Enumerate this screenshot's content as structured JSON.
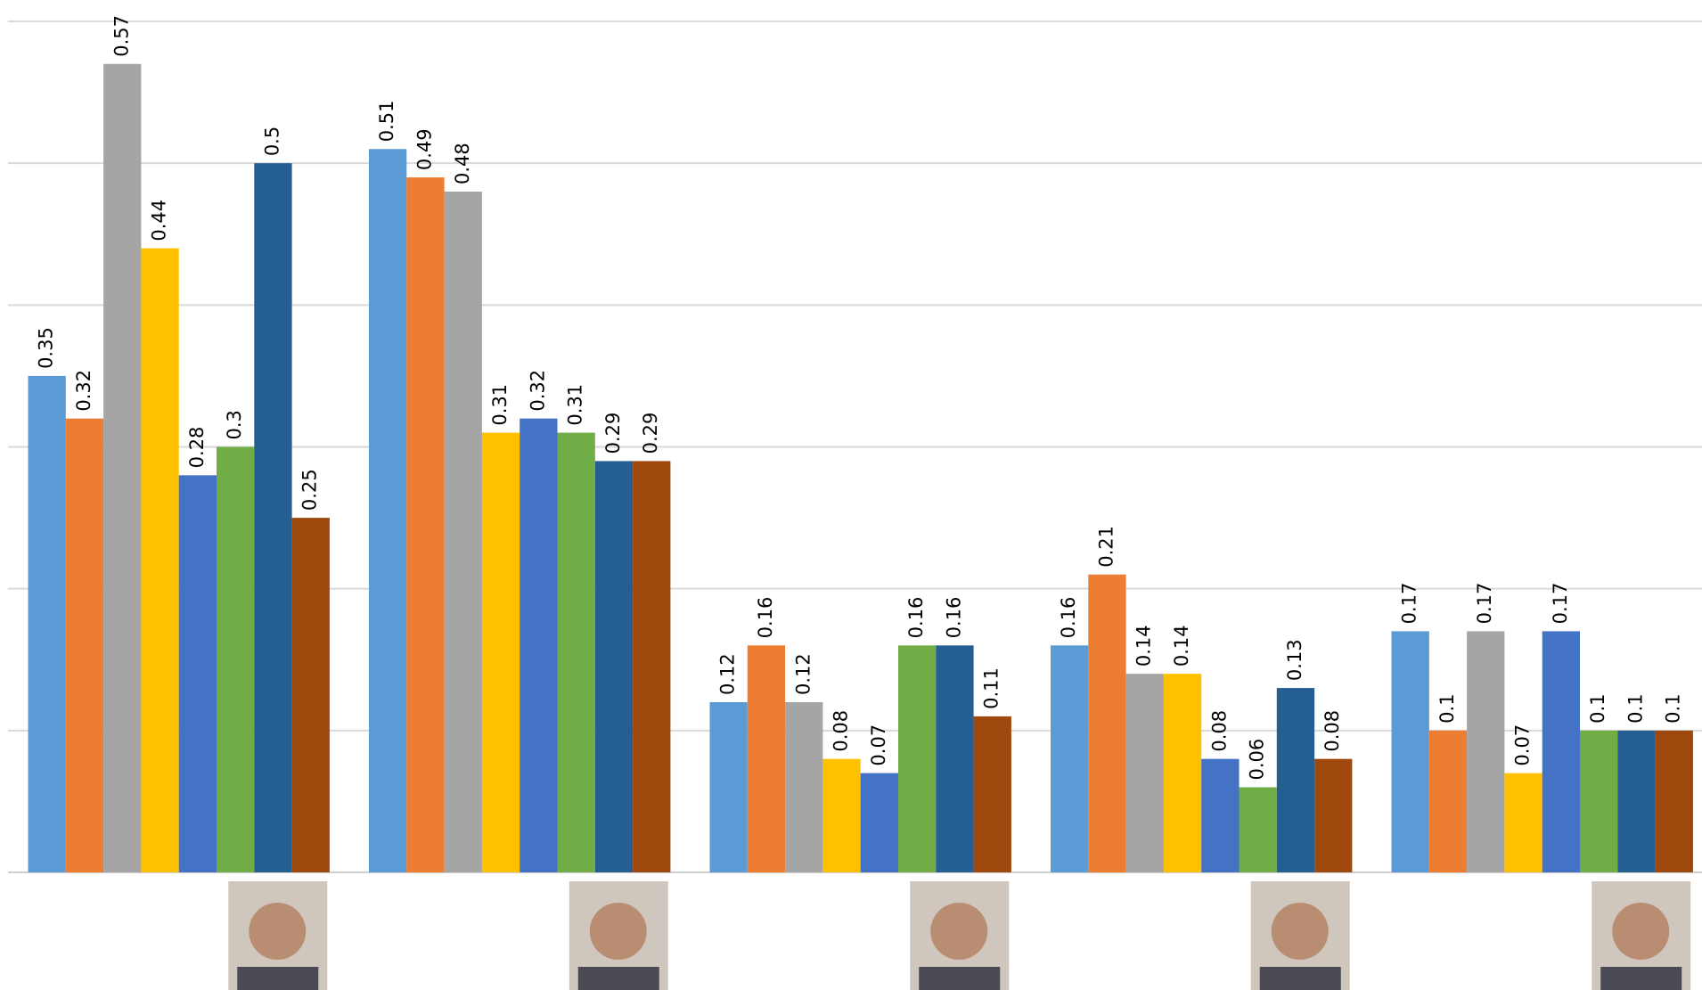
{
  "chart_data": {
    "type": "bar",
    "categories": [
      null,
      null,
      null,
      null,
      null
    ],
    "series": [
      {
        "color": "#5b9bd5",
        "values": [
          0.35,
          0.51,
          0.12,
          0.16,
          0.17
        ]
      },
      {
        "color": "#ed7d31",
        "values": [
          0.32,
          0.49,
          0.16,
          0.21,
          0.1
        ]
      },
      {
        "color": "#a5a5a5",
        "values": [
          0.57,
          0.48,
          0.12,
          0.14,
          0.17
        ]
      },
      {
        "color": "#ffc000",
        "values": [
          0.44,
          0.31,
          0.08,
          0.14,
          0.07
        ]
      },
      {
        "color": "#4472c4",
        "values": [
          0.28,
          0.32,
          0.07,
          0.08,
          0.17
        ]
      },
      {
        "color": "#70ad47",
        "values": [
          0.3,
          0.31,
          0.16,
          0.06,
          0.1
        ]
      },
      {
        "color": "#255e91",
        "values": [
          0.5,
          0.29,
          0.16,
          0.13,
          0.1
        ]
      },
      {
        "color": "#9e480e",
        "values": [
          0.25,
          0.29,
          0.11,
          0.08,
          0.1
        ]
      }
    ],
    "ylim": [
      0,
      0.6
    ],
    "yticks": [
      0,
      0.1,
      0.2,
      0.3,
      0.4,
      0.5,
      0.6
    ],
    "show_ytick_labels": false,
    "grid": true
  }
}
